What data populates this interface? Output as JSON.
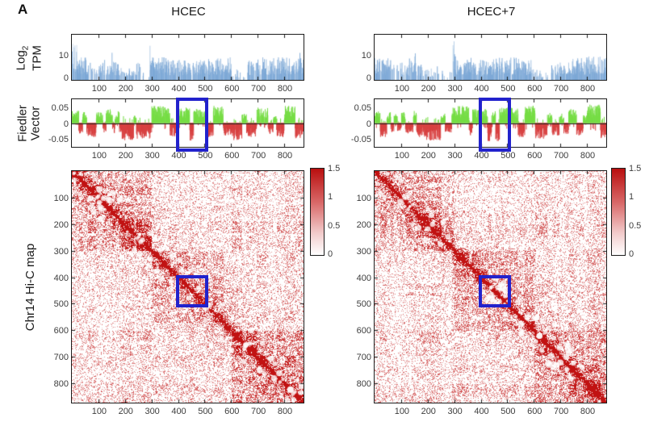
{
  "figure": {
    "panel_label": "A"
  },
  "columns": [
    {
      "title": "HCEC"
    },
    {
      "title": "HCEC+7"
    }
  ],
  "rows": {
    "tpm_line1": "Log",
    "tpm_sub": "2",
    "tpm_line2": "TPM",
    "fiedler_line1": "Fiedler",
    "fiedler_line2": "Vector",
    "hic_label": "Chr14 Hi-C map"
  },
  "colorbar": {
    "ticks": [
      "1.5",
      "1",
      "0.5",
      "0"
    ],
    "range": [
      0,
      1.5
    ]
  },
  "axes": {
    "x_tick_values": [
      100,
      200,
      300,
      400,
      500,
      600,
      700,
      800
    ],
    "x_max": 873,
    "tpm_y_ticks": [
      10,
      0
    ],
    "tpm_ylim": [
      0,
      18
    ],
    "fiedler_y_ticks": [
      0.05,
      0,
      -0.05
    ],
    "fiedler_y_tick_labels": [
      "0.05",
      "0",
      "-0.05"
    ],
    "fiedler_ylim": [
      -0.076,
      0.076
    ],
    "hic_y_tick_values": [
      100,
      200,
      300,
      400,
      500,
      600,
      700,
      800
    ]
  },
  "colors": {
    "tpm_bar": "#7ba7d6",
    "tpm_bar_light": "#b3cde8",
    "fiedler_pos": "#76dd45",
    "fiedler_neg": "#d84040",
    "heat_max": "#c11212",
    "highlight": "#2222cc",
    "axis": "#1a1a1a",
    "tick_text": "#3d3d3d"
  },
  "highlight_region": {
    "start": 390,
    "end": 512
  },
  "chart_data": [
    {
      "type": "bar",
      "name": "log2_tpm_hcec",
      "title": "HCEC",
      "ylabel": "Log2 TPM",
      "xlim": [
        0,
        873
      ],
      "ylim": [
        0,
        18
      ],
      "y_ticks": [
        0,
        10
      ],
      "x_ticks": [
        100,
        200,
        300,
        400,
        500,
        600,
        700,
        800
      ],
      "seed": 101,
      "segments": [
        [
          0,
          18,
          0.75,
          15
        ],
        [
          18,
          62,
          0.8,
          9
        ],
        [
          62,
          100,
          0.3,
          7
        ],
        [
          100,
          145,
          0.6,
          8
        ],
        [
          145,
          162,
          0.55,
          11
        ],
        [
          162,
          188,
          0.55,
          8
        ],
        [
          188,
          235,
          0.3,
          5
        ],
        [
          235,
          262,
          0.25,
          8
        ],
        [
          262,
          293,
          0.15,
          5
        ],
        [
          293,
          304,
          0.9,
          17
        ],
        [
          304,
          365,
          0.8,
          9
        ],
        [
          365,
          425,
          0.7,
          8
        ],
        [
          425,
          485,
          0.7,
          8
        ],
        [
          485,
          545,
          0.75,
          9
        ],
        [
          545,
          600,
          0.75,
          9
        ],
        [
          600,
          628,
          0.35,
          5
        ],
        [
          628,
          662,
          0.12,
          3
        ],
        [
          662,
          700,
          0.55,
          8
        ],
        [
          700,
          745,
          0.7,
          9
        ],
        [
          745,
          800,
          0.7,
          9
        ],
        [
          800,
          845,
          0.75,
          10
        ],
        [
          845,
          873,
          0.7,
          11
        ]
      ]
    },
    {
      "type": "bar",
      "name": "log2_tpm_hcec7",
      "title": "HCEC+7",
      "ylabel": "Log2 TPM",
      "xlim": [
        0,
        873
      ],
      "ylim": [
        0,
        18
      ],
      "y_ticks": [
        0,
        10
      ],
      "x_ticks": [
        100,
        200,
        300,
        400,
        500,
        600,
        700,
        800
      ],
      "seed": 202,
      "segments": [
        [
          0,
          18,
          0.7,
          9
        ],
        [
          18,
          60,
          0.75,
          9
        ],
        [
          60,
          95,
          0.25,
          6
        ],
        [
          95,
          130,
          0.55,
          7
        ],
        [
          130,
          158,
          0.5,
          11
        ],
        [
          158,
          188,
          0.5,
          7
        ],
        [
          188,
          235,
          0.25,
          5
        ],
        [
          235,
          262,
          0.3,
          7
        ],
        [
          262,
          293,
          0.12,
          4
        ],
        [
          293,
          304,
          0.9,
          17
        ],
        [
          304,
          365,
          0.8,
          9
        ],
        [
          365,
          425,
          0.7,
          8
        ],
        [
          425,
          485,
          0.7,
          9
        ],
        [
          485,
          545,
          0.75,
          9
        ],
        [
          545,
          600,
          0.7,
          8
        ],
        [
          600,
          632,
          0.3,
          4
        ],
        [
          632,
          665,
          0.15,
          3
        ],
        [
          665,
          700,
          0.5,
          7
        ],
        [
          700,
          748,
          0.7,
          9
        ],
        [
          748,
          800,
          0.7,
          9
        ],
        [
          800,
          848,
          0.75,
          10
        ],
        [
          848,
          873,
          0.7,
          10
        ]
      ]
    },
    {
      "type": "bar",
      "name": "fiedler_vector_hcec",
      "ylabel": "Fiedler Vector",
      "xlim": [
        0,
        873
      ],
      "ylim": [
        -0.076,
        0.076
      ],
      "y_ticks": [
        -0.05,
        0,
        0.05
      ],
      "highlight": [
        390,
        512
      ],
      "seed": 303,
      "segments": [
        [
          0,
          25,
          0.04
        ],
        [
          25,
          40,
          -0.035
        ],
        [
          40,
          55,
          0.035
        ],
        [
          55,
          90,
          -0.045
        ],
        [
          90,
          115,
          0.035
        ],
        [
          115,
          128,
          -0.03
        ],
        [
          128,
          152,
          0.045
        ],
        [
          152,
          163,
          -0.035
        ],
        [
          163,
          178,
          0.04
        ],
        [
          178,
          188,
          -0.03
        ],
        [
          188,
          232,
          -0.055
        ],
        [
          232,
          242,
          0.025
        ],
        [
          242,
          300,
          -0.05
        ],
        [
          300,
          368,
          0.055
        ],
        [
          368,
          395,
          -0.045
        ],
        [
          395,
          443,
          0.05
        ],
        [
          443,
          458,
          -0.06
        ],
        [
          458,
          505,
          0.045
        ],
        [
          505,
          532,
          -0.045
        ],
        [
          532,
          570,
          0.055
        ],
        [
          570,
          600,
          -0.04
        ],
        [
          600,
          640,
          -0.055
        ],
        [
          640,
          657,
          0.03
        ],
        [
          657,
          695,
          -0.045
        ],
        [
          695,
          738,
          0.05
        ],
        [
          738,
          758,
          -0.035
        ],
        [
          758,
          770,
          0.025
        ],
        [
          770,
          800,
          -0.045
        ],
        [
          800,
          840,
          0.055
        ],
        [
          840,
          873,
          -0.05
        ]
      ]
    },
    {
      "type": "bar",
      "name": "fiedler_vector_hcec7",
      "ylabel": "Fiedler Vector",
      "xlim": [
        0,
        873
      ],
      "ylim": [
        -0.076,
        0.076
      ],
      "y_ticks": [
        -0.05,
        0,
        0.05
      ],
      "highlight": [
        390,
        512
      ],
      "seed": 404,
      "segments": [
        [
          0,
          20,
          0.04
        ],
        [
          20,
          45,
          -0.045
        ],
        [
          45,
          60,
          0.035
        ],
        [
          60,
          72,
          -0.03
        ],
        [
          72,
          85,
          0.03
        ],
        [
          85,
          100,
          -0.025
        ],
        [
          100,
          115,
          0.035
        ],
        [
          115,
          145,
          -0.035
        ],
        [
          145,
          157,
          0.04
        ],
        [
          157,
          195,
          -0.045
        ],
        [
          195,
          250,
          -0.055
        ],
        [
          250,
          265,
          0.03
        ],
        [
          265,
          290,
          -0.03
        ],
        [
          290,
          355,
          0.055
        ],
        [
          355,
          368,
          -0.04
        ],
        [
          368,
          425,
          0.045
        ],
        [
          425,
          440,
          -0.06
        ],
        [
          440,
          455,
          0.04
        ],
        [
          455,
          470,
          -0.06
        ],
        [
          470,
          540,
          0.05
        ],
        [
          540,
          565,
          -0.045
        ],
        [
          565,
          605,
          0.055
        ],
        [
          605,
          650,
          -0.05
        ],
        [
          650,
          668,
          0.035
        ],
        [
          668,
          695,
          -0.04
        ],
        [
          695,
          712,
          0.03
        ],
        [
          712,
          730,
          -0.035
        ],
        [
          730,
          760,
          0.045
        ],
        [
          760,
          785,
          -0.04
        ],
        [
          785,
          800,
          0.025
        ],
        [
          800,
          850,
          0.06
        ],
        [
          850,
          873,
          -0.05
        ]
      ]
    },
    {
      "type": "heatmap",
      "name": "chr14_hic_map_hcec",
      "ylabel": "Chr14 Hi-C map",
      "xlim": [
        0,
        873
      ],
      "ylim": [
        0,
        873
      ],
      "colormap": "white-red",
      "color_range": [
        0,
        1.5
      ],
      "highlight": [
        390,
        512
      ],
      "seed": 13,
      "compartment_source": 2,
      "domains": [
        [
          0,
          300
        ],
        [
          300,
          600
        ],
        [
          600,
          873
        ]
      ],
      "domain_matrix": [
        [
          1.45,
          0.72,
          0.95
        ],
        [
          0.72,
          1.0,
          0.78
        ],
        [
          0.95,
          0.78,
          1.5
        ]
      ]
    },
    {
      "type": "heatmap",
      "name": "chr14_hic_map_hcec7",
      "ylabel": "Chr14 Hi-C map",
      "xlim": [
        0,
        873
      ],
      "ylim": [
        0,
        873
      ],
      "colormap": "white-red",
      "color_range": [
        0,
        1.5
      ],
      "highlight": [
        390,
        512
      ],
      "seed": 47,
      "compartment_source": 3,
      "domains": [
        [
          0,
          300
        ],
        [
          300,
          600
        ],
        [
          600,
          873
        ]
      ],
      "domain_matrix": [
        [
          1.4,
          0.75,
          1.0
        ],
        [
          0.75,
          1.05,
          0.82
        ],
        [
          1.0,
          0.82,
          1.55
        ]
      ]
    }
  ]
}
